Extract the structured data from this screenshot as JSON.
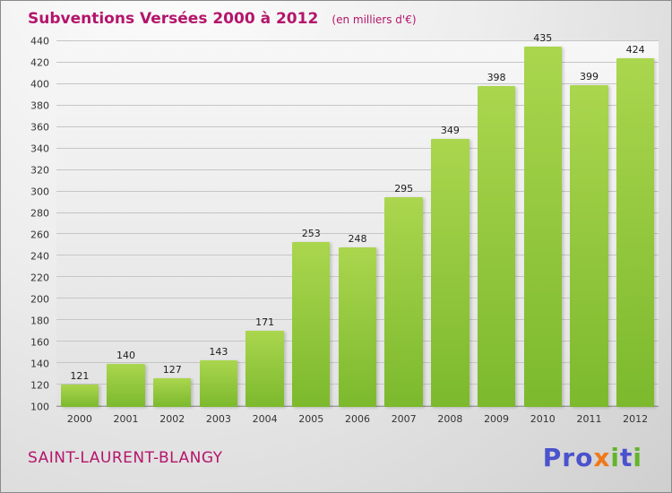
{
  "header": {
    "title": "Subventions Versées 2000 à 2012",
    "subtitle": "(en milliers d'€)"
  },
  "chart_data": {
    "type": "bar",
    "title": "Subventions Versées 2000 à 2012",
    "subtitle": "(en milliers d'€)",
    "categories": [
      "2000",
      "2001",
      "2002",
      "2003",
      "2004",
      "2005",
      "2006",
      "2007",
      "2008",
      "2009",
      "2010",
      "2011",
      "2012"
    ],
    "values": [
      121,
      140,
      127,
      143,
      171,
      253,
      248,
      295,
      349,
      398,
      435,
      399,
      424
    ],
    "xlabel": "",
    "ylabel": "",
    "ylim": [
      100,
      440
    ],
    "ytick_step": 20,
    "grid": true,
    "legend": "none",
    "bar_color_top": "#aad64e",
    "bar_color_bottom": "#7cb92d"
  },
  "footer": {
    "municipality": "SAINT-LAURENT-BLANGY",
    "logo": {
      "text": "Proxiti",
      "letters": [
        {
          "ch": "P",
          "color": "#4a52cc"
        },
        {
          "ch": "r",
          "color": "#4a52cc"
        },
        {
          "ch": "o",
          "color": "#4a52cc"
        },
        {
          "ch": "x",
          "color": "#f07818"
        },
        {
          "ch": "i",
          "color": "#62b52a"
        },
        {
          "ch": "t",
          "color": "#4a52cc"
        },
        {
          "ch": "i",
          "color": "#62b52a"
        }
      ]
    }
  },
  "colors": {
    "accent": "#b4156b",
    "axis_text": "#333333",
    "gridline": "#c5c5c5"
  }
}
